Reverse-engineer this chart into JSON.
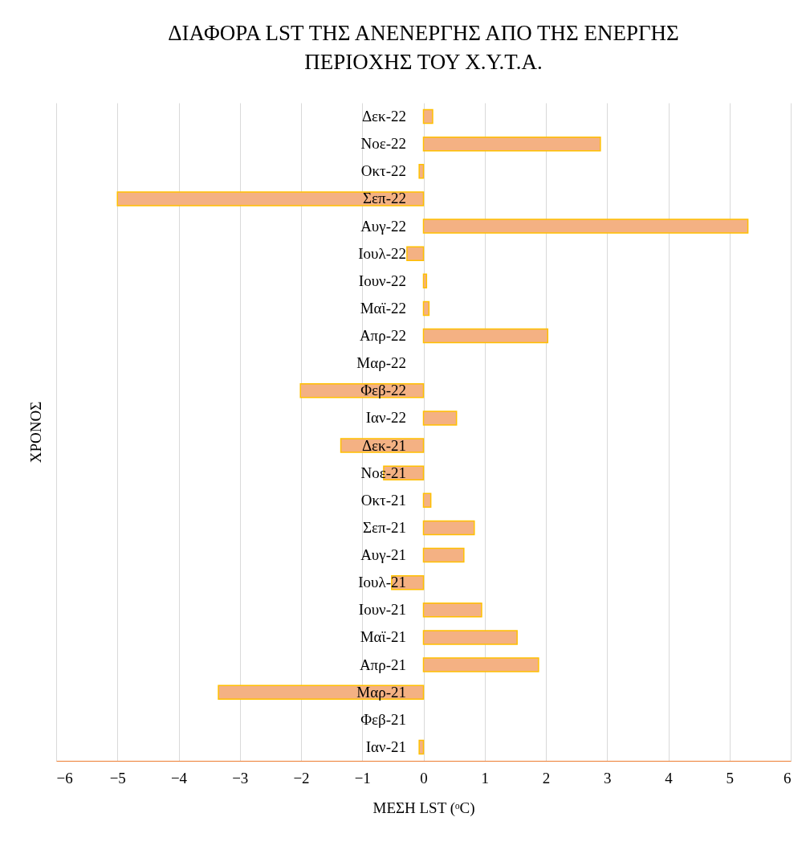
{
  "chart_data": {
    "type": "bar",
    "orientation": "horizontal",
    "title": "ΔΙΑΦΟΡΑ LST ΤΗΣ ΑΝΕΝΕΡΓΗΣ ΑΠΟ ΤΗΣ ΕΝΕΡΓΗΣ ΠΕΡΙΟΧΗΣ ΤΟΥ Χ.Υ.Τ.Α.",
    "xlabel": "ΜΕΣΗ LST (ᵒC)",
    "ylabel": "ΧΡΟΝΟΣ",
    "categories": [
      "Δεκ-22",
      "Νοε-22",
      "Οκτ-22",
      "Σεπ-22",
      "Αυγ-22",
      "Ιουλ-22",
      "Ιουν-22",
      "Μαϊ-22",
      "Απρ-22",
      "Μαρ-22",
      "Φεβ-22",
      "Ιαν-22",
      "Δεκ-21",
      "Νοε-21",
      "Οκτ-21",
      "Σεπ-21",
      "Αυγ-21",
      "Ιουλ-21",
      "Ιουν-21",
      "Μαϊ-21",
      "Απρ-21",
      "Μαρ-21",
      "Φεβ-21",
      "Ιαν-21"
    ],
    "values": [
      0.15,
      2.89,
      -0.07,
      -5.0,
      5.3,
      -0.27,
      0.05,
      0.09,
      2.03,
      null,
      -2.01,
      0.54,
      -1.35,
      -0.65,
      0.12,
      0.83,
      0.66,
      -0.52,
      0.95,
      1.53,
      1.88,
      -3.35,
      null,
      -0.07
    ],
    "color": "#f4b183",
    "xlim": [
      -6,
      6
    ],
    "xticks": [
      -6,
      -5,
      -4,
      -3,
      -2,
      -1,
      0,
      1,
      2,
      3,
      4,
      5,
      6
    ],
    "grid": "x"
  }
}
